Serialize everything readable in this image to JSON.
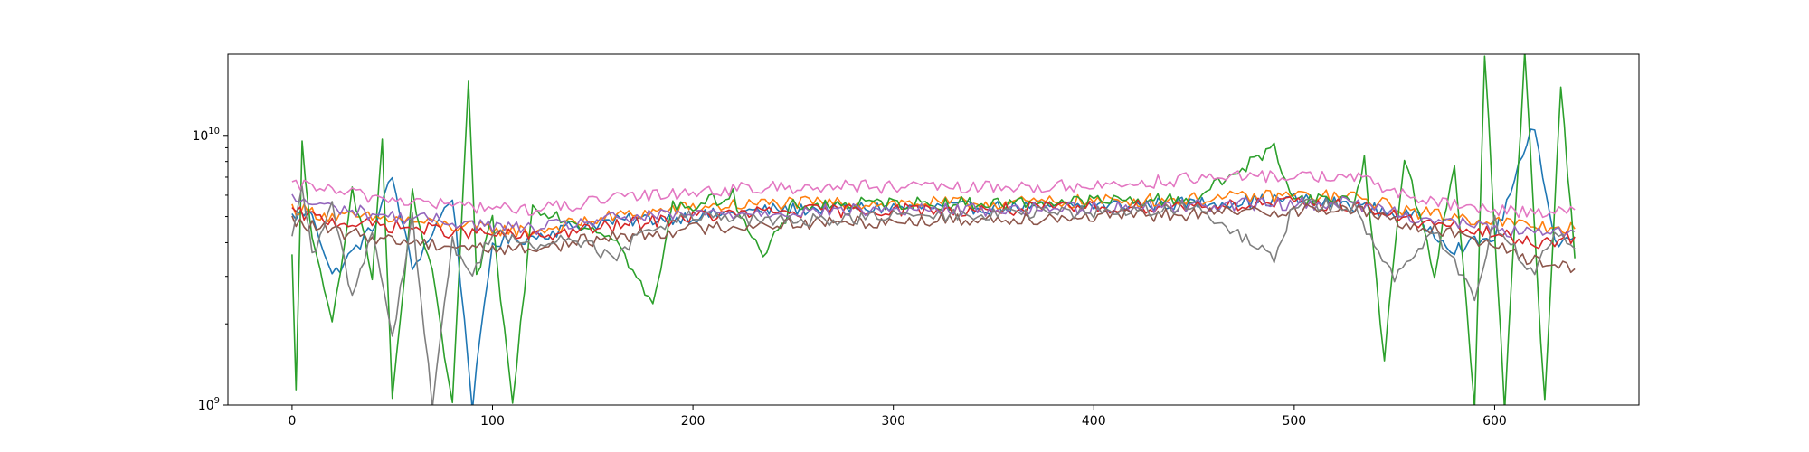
{
  "chart_data": {
    "type": "line",
    "title": "",
    "xlabel": "",
    "ylabel": "",
    "x_range": [
      -32,
      672
    ],
    "y_range": [
      1000000000,
      20000000000
    ],
    "y_scale": "log",
    "grid": false,
    "legend": "none",
    "x_ticks": [
      {
        "value": 0,
        "label": "0"
      },
      {
        "value": 100,
        "label": "100"
      },
      {
        "value": 200,
        "label": "200"
      },
      {
        "value": 300,
        "label": "300"
      },
      {
        "value": 400,
        "label": "400"
      },
      {
        "value": 500,
        "label": "500"
      },
      {
        "value": 600,
        "label": "600"
      }
    ],
    "y_ticks": [
      {
        "value": 1000000000,
        "base": "10",
        "exp": "9"
      },
      {
        "value": 10000000000,
        "base": "10",
        "exp": "10"
      }
    ],
    "series": [
      {
        "color": "#1f77b4",
        "points": [
          [
            0,
            5000000000.0
          ],
          [
            10,
            5200000000.0
          ],
          [
            20,
            3000000000.0
          ],
          [
            40,
            4500000000.0
          ],
          [
            50,
            7000000000.0
          ],
          [
            60,
            3200000000.0
          ],
          [
            80,
            6000000000.0
          ],
          [
            90,
            1000000000.0
          ],
          [
            100,
            4000000000.0
          ],
          [
            120,
            4200000000.0
          ],
          [
            140,
            4600000000.0
          ],
          [
            160,
            4800000000.0
          ],
          [
            200,
            5000000000.0
          ],
          [
            240,
            5300000000.0
          ],
          [
            300,
            5400000000.0
          ],
          [
            350,
            5400000000.0
          ],
          [
            400,
            5500000000.0
          ],
          [
            450,
            5600000000.0
          ],
          [
            500,
            5800000000.0
          ],
          [
            530,
            5500000000.0
          ],
          [
            560,
            5000000000.0
          ],
          [
            580,
            3800000000.0
          ],
          [
            600,
            4200000000.0
          ],
          [
            620,
            11000000000.0
          ],
          [
            630,
            4000000000.0
          ],
          [
            640,
            4200000000.0
          ]
        ]
      },
      {
        "color": "#ff7f0e",
        "points": [
          [
            0,
            5400000000.0
          ],
          [
            20,
            5000000000.0
          ],
          [
            50,
            4900000000.0
          ],
          [
            80,
            4600000000.0
          ],
          [
            100,
            4500000000.0
          ],
          [
            120,
            4400000000.0
          ],
          [
            140,
            4700000000.0
          ],
          [
            160,
            5000000000.0
          ],
          [
            200,
            5400000000.0
          ],
          [
            240,
            5600000000.0
          ],
          [
            300,
            5600000000.0
          ],
          [
            350,
            5600000000.0
          ],
          [
            400,
            5700000000.0
          ],
          [
            450,
            5800000000.0
          ],
          [
            500,
            6000000000.0
          ],
          [
            530,
            5900000000.0
          ],
          [
            560,
            5200000000.0
          ],
          [
            600,
            4800000000.0
          ],
          [
            620,
            4600000000.0
          ],
          [
            640,
            4500000000.0
          ]
        ]
      },
      {
        "color": "#2ca02c",
        "points": [
          [
            0,
            3500000000.0
          ],
          [
            2,
            1100000000.0
          ],
          [
            5,
            9500000000.0
          ],
          [
            10,
            4000000000.0
          ],
          [
            20,
            2000000000.0
          ],
          [
            30,
            6500000000.0
          ],
          [
            40,
            3000000000.0
          ],
          [
            45,
            9500000000.0
          ],
          [
            50,
            1000000000.0
          ],
          [
            60,
            6000000000.0
          ],
          [
            70,
            3000000000.0
          ],
          [
            80,
            1000000000.0
          ],
          [
            88,
            15000000000.0
          ],
          [
            92,
            3000000000.0
          ],
          [
            100,
            4800000000.0
          ],
          [
            110,
            1000000000.0
          ],
          [
            120,
            5500000000.0
          ],
          [
            140,
            4800000000.0
          ],
          [
            160,
            4300000000.0
          ],
          [
            180,
            2300000000.0
          ],
          [
            190,
            5500000000.0
          ],
          [
            200,
            5500000000.0
          ],
          [
            220,
            6000000000.0
          ],
          [
            235,
            3500000000.0
          ],
          [
            250,
            5500000000.0
          ],
          [
            300,
            5600000000.0
          ],
          [
            350,
            5600000000.0
          ],
          [
            400,
            5700000000.0
          ],
          [
            450,
            5800000000.0
          ],
          [
            490,
            9000000000.0
          ],
          [
            500,
            5800000000.0
          ],
          [
            530,
            5800000000.0
          ],
          [
            535,
            8000000000.0
          ],
          [
            545,
            1500000000.0
          ],
          [
            555,
            8500000000.0
          ],
          [
            570,
            3000000000.0
          ],
          [
            580,
            8000000000.0
          ],
          [
            590,
            1000000000.0
          ],
          [
            595,
            20000000000.0
          ],
          [
            605,
            1000000000.0
          ],
          [
            615,
            20000000000.0
          ],
          [
            625,
            1000000000.0
          ],
          [
            633,
            15000000000.0
          ],
          [
            640,
            3500000000.0
          ]
        ]
      },
      {
        "color": "#d62728",
        "points": [
          [
            0,
            5200000000.0
          ],
          [
            20,
            4800000000.0
          ],
          [
            50,
            4600000000.0
          ],
          [
            80,
            4400000000.0
          ],
          [
            100,
            4300000000.0
          ],
          [
            120,
            4200000000.0
          ],
          [
            140,
            4400000000.0
          ],
          [
            160,
            4600000000.0
          ],
          [
            200,
            5000000000.0
          ],
          [
            240,
            5200000000.0
          ],
          [
            300,
            5300000000.0
          ],
          [
            350,
            5300000000.0
          ],
          [
            400,
            5400000000.0
          ],
          [
            450,
            5500000000.0
          ],
          [
            500,
            5600000000.0
          ],
          [
            530,
            5500000000.0
          ],
          [
            560,
            4800000000.0
          ],
          [
            600,
            4300000000.0
          ],
          [
            620,
            4000000000.0
          ],
          [
            640,
            4200000000.0
          ]
        ]
      },
      {
        "color": "#9467bd",
        "points": [
          [
            0,
            5800000000.0
          ],
          [
            20,
            5400000000.0
          ],
          [
            50,
            5000000000.0
          ],
          [
            80,
            4800000000.0
          ],
          [
            100,
            4600000000.0
          ],
          [
            120,
            4500000000.0
          ],
          [
            140,
            4700000000.0
          ],
          [
            160,
            4900000000.0
          ],
          [
            200,
            5100000000.0
          ],
          [
            240,
            5200000000.0
          ],
          [
            300,
            5300000000.0
          ],
          [
            350,
            5300000000.0
          ],
          [
            400,
            5400000000.0
          ],
          [
            450,
            5500000000.0
          ],
          [
            500,
            5600000000.0
          ],
          [
            530,
            5600000000.0
          ],
          [
            560,
            5000000000.0
          ],
          [
            600,
            4500000000.0
          ],
          [
            620,
            4300000000.0
          ],
          [
            640,
            4400000000.0
          ]
        ]
      },
      {
        "color": "#8c564b",
        "points": [
          [
            0,
            4800000000.0
          ],
          [
            20,
            4400000000.0
          ],
          [
            50,
            4100000000.0
          ],
          [
            80,
            3900000000.0
          ],
          [
            100,
            3800000000.0
          ],
          [
            120,
            3800000000.0
          ],
          [
            140,
            4000000000.0
          ],
          [
            160,
            4200000000.0
          ],
          [
            200,
            4500000000.0
          ],
          [
            240,
            4700000000.0
          ],
          [
            300,
            4800000000.0
          ],
          [
            350,
            4900000000.0
          ],
          [
            400,
            5000000000.0
          ],
          [
            450,
            5100000000.0
          ],
          [
            500,
            5300000000.0
          ],
          [
            530,
            5300000000.0
          ],
          [
            560,
            4600000000.0
          ],
          [
            600,
            4000000000.0
          ],
          [
            620,
            3400000000.0
          ],
          [
            640,
            3200000000.0
          ]
        ]
      },
      {
        "color": "#e377c2",
        "points": [
          [
            0,
            6400000000.0
          ],
          [
            10,
            6600000000.0
          ],
          [
            20,
            6200000000.0
          ],
          [
            50,
            5800000000.0
          ],
          [
            80,
            5500000000.0
          ],
          [
            100,
            5400000000.0
          ],
          [
            120,
            5300000000.0
          ],
          [
            140,
            5500000000.0
          ],
          [
            160,
            5800000000.0
          ],
          [
            200,
            6200000000.0
          ],
          [
            240,
            6400000000.0
          ],
          [
            280,
            6500000000.0
          ],
          [
            300,
            6400000000.0
          ],
          [
            350,
            6400000000.0
          ],
          [
            400,
            6500000000.0
          ],
          [
            450,
            6900000000.0
          ],
          [
            500,
            7100000000.0
          ],
          [
            530,
            7000000000.0
          ],
          [
            550,
            6200000000.0
          ],
          [
            570,
            5600000000.0
          ],
          [
            600,
            5300000000.0
          ],
          [
            620,
            5200000000.0
          ],
          [
            640,
            5300000000.0
          ]
        ]
      },
      {
        "color": "#7f7f7f",
        "points": [
          [
            0,
            4000000000.0
          ],
          [
            5,
            6500000000.0
          ],
          [
            10,
            3500000000.0
          ],
          [
            20,
            5500000000.0
          ],
          [
            30,
            2500000000.0
          ],
          [
            40,
            4500000000.0
          ],
          [
            50,
            1800000000.0
          ],
          [
            60,
            5000000000.0
          ],
          [
            70,
            1000000000.0
          ],
          [
            80,
            4000000000.0
          ],
          [
            90,
            3000000000.0
          ],
          [
            100,
            4500000000.0
          ],
          [
            120,
            3800000000.0
          ],
          [
            140,
            4200000000.0
          ],
          [
            160,
            3500000000.0
          ],
          [
            180,
            4600000000.0
          ],
          [
            200,
            5000000000.0
          ],
          [
            240,
            4800000000.0
          ],
          [
            300,
            5000000000.0
          ],
          [
            350,
            5100000000.0
          ],
          [
            400,
            5200000000.0
          ],
          [
            450,
            5400000000.0
          ],
          [
            490,
            3500000000.0
          ],
          [
            500,
            5600000000.0
          ],
          [
            530,
            5400000000.0
          ],
          [
            550,
            3000000000.0
          ],
          [
            570,
            4500000000.0
          ],
          [
            590,
            2500000000.0
          ],
          [
            600,
            4800000000.0
          ],
          [
            620,
            3000000000.0
          ],
          [
            630,
            4500000000.0
          ],
          [
            640,
            3800000000.0
          ]
        ]
      }
    ]
  }
}
